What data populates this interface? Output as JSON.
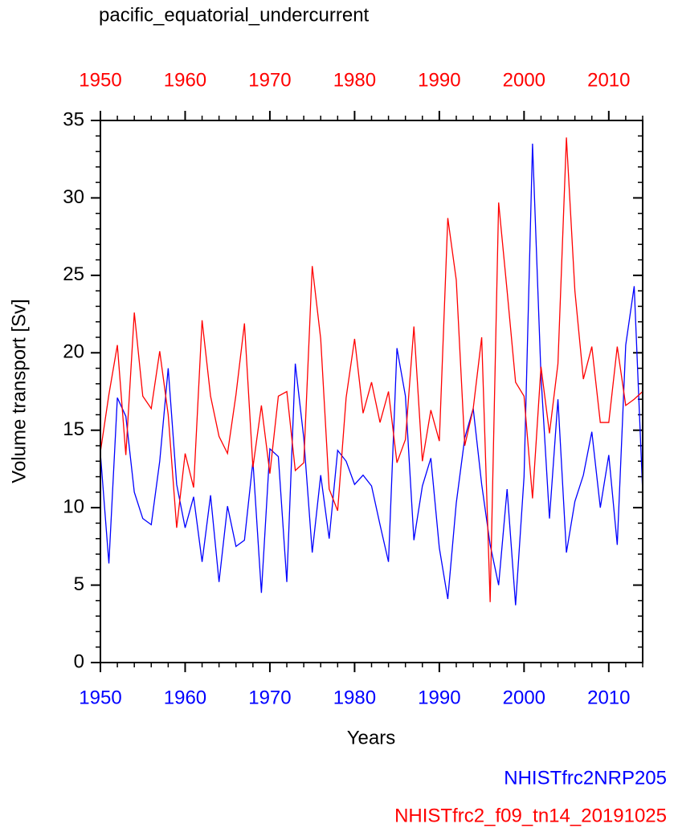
{
  "chart_data": {
    "type": "line",
    "title": "pacific_equatorial_undercurrent",
    "xlabel": "Years",
    "ylabel": "Volume transport [Sv]",
    "x": [
      1950,
      1951,
      1952,
      1953,
      1954,
      1955,
      1956,
      1957,
      1958,
      1959,
      1960,
      1961,
      1962,
      1963,
      1964,
      1965,
      1966,
      1967,
      1968,
      1969,
      1970,
      1971,
      1972,
      1973,
      1974,
      1975,
      1976,
      1977,
      1978,
      1979,
      1980,
      1981,
      1982,
      1983,
      1984,
      1985,
      1986,
      1987,
      1988,
      1989,
      1990,
      1991,
      1992,
      1993,
      1994,
      1995,
      1996,
      1997,
      1998,
      1999,
      2000,
      2001,
      2002,
      2003,
      2004,
      2005,
      2006,
      2007,
      2008,
      2009,
      2010,
      2011,
      2012,
      2013,
      2014
    ],
    "series": [
      {
        "name": "NHISTfrc2NRP205",
        "color": "#0000ff",
        "values": [
          13.5,
          6.4,
          17.1,
          15.9,
          11.0,
          9.3,
          8.9,
          13.0,
          19.0,
          11.5,
          8.7,
          10.7,
          6.5,
          10.8,
          5.2,
          10.1,
          7.5,
          7.9,
          13.0,
          4.5,
          13.8,
          13.3,
          5.2,
          19.3,
          14.5,
          7.1,
          12.1,
          8.0,
          13.7,
          13.0,
          11.5,
          12.1,
          11.4,
          8.9,
          6.5,
          20.3,
          17.2,
          7.9,
          11.4,
          13.2,
          7.4,
          4.1,
          10.3,
          14.5,
          16.4,
          11.5,
          7.6,
          5.0,
          11.2,
          3.7,
          12.0,
          33.5,
          18.5,
          9.3,
          17.0,
          7.1,
          10.4,
          12.1,
          14.9,
          10.0,
          13.4,
          7.6,
          20.5,
          24.3,
          11.0
        ]
      },
      {
        "name": "NHISTfrc2_f09_tn14_20191025",
        "color": "#ff0000",
        "values": [
          13.6,
          17.3,
          20.5,
          13.4,
          22.6,
          17.2,
          16.4,
          20.1,
          16.0,
          8.7,
          13.5,
          11.3,
          22.1,
          17.2,
          14.6,
          13.5,
          17.3,
          21.9,
          12.6,
          16.6,
          12.2,
          17.2,
          17.5,
          12.4,
          12.9,
          25.6,
          20.9,
          11.2,
          9.8,
          17.1,
          20.9,
          16.1,
          18.1,
          15.5,
          17.5,
          12.9,
          14.4,
          21.7,
          13.0,
          16.3,
          14.3,
          28.7,
          24.7,
          14.0,
          16.4,
          21.0,
          3.9,
          29.7,
          24.0,
          18.1,
          17.2,
          10.6,
          19.1,
          14.8,
          19.3,
          33.9,
          24.0,
          18.3,
          20.4,
          15.5,
          15.5,
          20.4,
          16.6,
          17.0,
          17.5
        ]
      }
    ],
    "xlim": [
      1950,
      2014
    ],
    "xticks": [
      1950,
      1960,
      1970,
      1980,
      1990,
      2000,
      2010
    ],
    "xtick_color": "#0000ff",
    "x2lim": [
      1950,
      2014
    ],
    "x2ticks": [
      1950,
      1960,
      1970,
      1980,
      1990,
      2000,
      2010
    ],
    "x2tick_color": "#ff0000",
    "ylim": [
      0,
      35
    ],
    "yticks": [
      0,
      5,
      10,
      15,
      20,
      25,
      30,
      35
    ]
  }
}
